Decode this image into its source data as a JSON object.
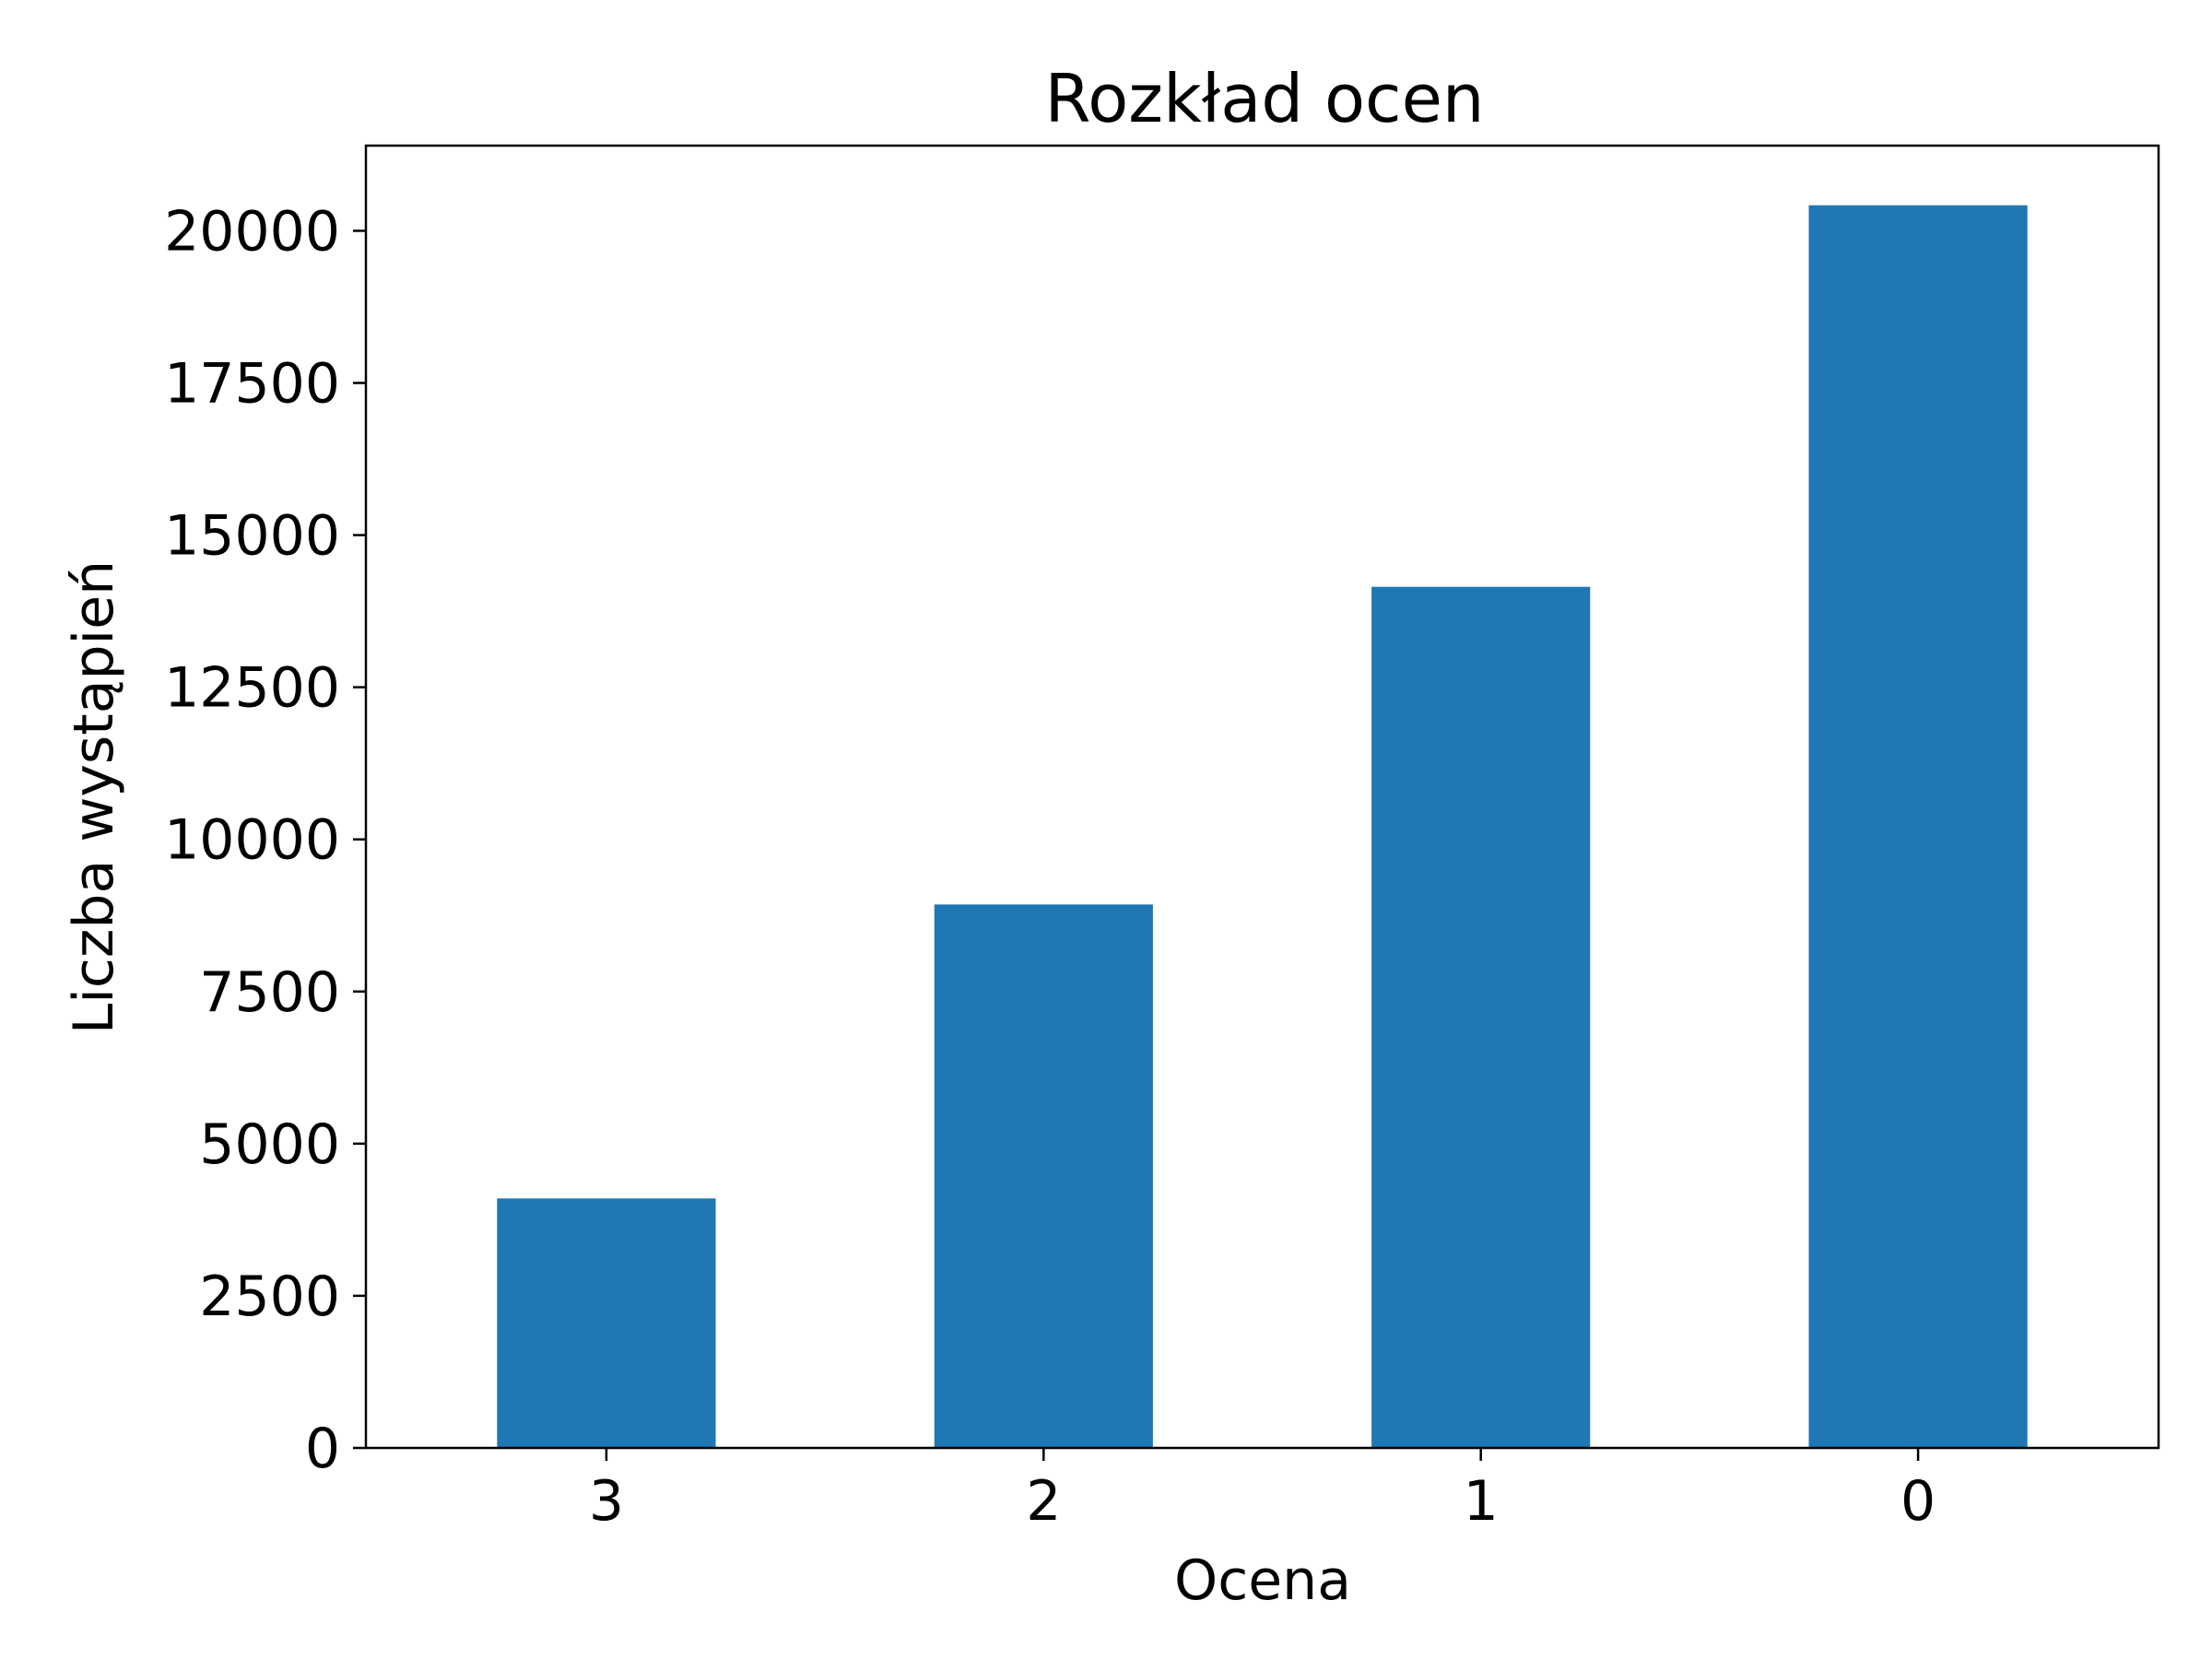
{
  "chart_data": {
    "type": "bar",
    "title": "Rozkład ocen",
    "xlabel": "Ocena",
    "ylabel": "Liczba wystąpień",
    "categories": [
      "3",
      "2",
      "1",
      "0"
    ],
    "values": [
      4100,
      8930,
      14150,
      20420
    ],
    "ylim": [
      0,
      21400
    ],
    "yticks": [
      "0",
      "2500",
      "5000",
      "7500",
      "10000",
      "12500",
      "15000",
      "17500",
      "20000"
    ],
    "ytick_values": [
      0,
      2500,
      5000,
      7500,
      10000,
      12500,
      15000,
      17500,
      20000
    ],
    "grid": false,
    "bar_color": "#1f77b4"
  }
}
